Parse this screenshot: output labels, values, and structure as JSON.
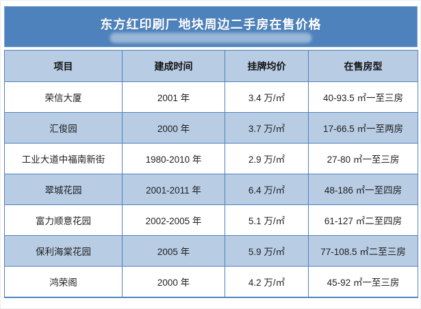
{
  "page": {
    "title": "东方红印刷厂地块周边二手房在售价格"
  },
  "colors": {
    "title_bar_bg": "#4d82bc",
    "title_text": "#ffffff",
    "header_bg": "#b8cce4",
    "alt_row_bg": "#b8cce4",
    "grid_border": "#4f81bd",
    "outer_border": "#a9c6e3",
    "body_text": "#1f1f1f"
  },
  "table": {
    "headers": [
      "项目",
      "建成时间",
      "挂牌均价",
      "在售房型"
    ],
    "rows": [
      {
        "project": "荣信大厦",
        "built": "2001 年",
        "price": "3.4 万/㎡",
        "types": "40-93.5 ㎡一至三房"
      },
      {
        "project": "汇俊园",
        "built": "2000 年",
        "price": "3.7 万/㎡",
        "types": "17-66.5 ㎡一至两房"
      },
      {
        "project": "工业大道中福南新街",
        "built": "1980-2010 年",
        "price": "2.9 万/㎡",
        "types": "27-80 ㎡一至三房"
      },
      {
        "project": "翠城花园",
        "built": "2001-2011 年",
        "price": "6.4 万/㎡",
        "types": "48-186 ㎡一至四房"
      },
      {
        "project": "富力顺意花园",
        "built": "2002-2005 年",
        "price": "5.1 万/㎡",
        "types": "61-127 ㎡二至四房"
      },
      {
        "project": "保利海棠花园",
        "built": "2005 年",
        "price": "5.9 万/㎡",
        "types": "77-108.5 ㎡二至三房"
      },
      {
        "project": "鸿荣阁",
        "built": "2000 年",
        "price": "4.2 万/㎡",
        "types": "45-92 ㎡一至三房"
      }
    ]
  },
  "chart_data": {
    "type": "table",
    "title": "东方红印刷厂地块周边二手房在售价格",
    "columns": [
      "项目",
      "建成时间",
      "挂牌均价",
      "在售房型"
    ],
    "rows": [
      [
        "荣信大厦",
        "2001 年",
        "3.4 万/㎡",
        "40-93.5 ㎡一至三房"
      ],
      [
        "汇俊园",
        "2000 年",
        "3.7 万/㎡",
        "17-66.5 ㎡一至两房"
      ],
      [
        "工业大道中福南新街",
        "1980-2010 年",
        "2.9 万/㎡",
        "27-80 ㎡一至三房"
      ],
      [
        "翠城花园",
        "2001-2011 年",
        "6.4 万/㎡",
        "48-186 ㎡一至四房"
      ],
      [
        "富力顺意花园",
        "2002-2005 年",
        "5.1 万/㎡",
        "61-127 ㎡二至四房"
      ],
      [
        "保利海棠花园",
        "2005 年",
        "5.9 万/㎡",
        "77-108.5 ㎡二至三房"
      ],
      [
        "鸿荣阁",
        "2000 年",
        "4.2 万/㎡",
        "45-92 ㎡一至三房"
      ]
    ],
    "listing_price_values_wan_per_sqm": [
      3.4,
      3.7,
      2.9,
      6.4,
      5.1,
      5.9,
      4.2
    ]
  }
}
